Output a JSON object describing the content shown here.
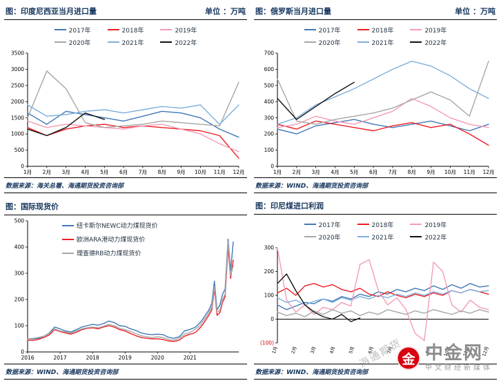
{
  "watermark": {
    "logo_text": "金",
    "brand": "中金网",
    "tagline": "中文财经新媒体",
    "diagonal": "海通期货"
  },
  "chart_data": [
    {
      "type": "line",
      "title": "图：印度尼西亚当月进口量",
      "unit": "单位 ：万吨",
      "source": "数据来源：海关总署、海通期货投资咨询部",
      "x_labels": [
        "1月",
        "2月",
        "3月",
        "4月",
        "5月",
        "6月",
        "7月",
        "8月",
        "9月",
        "10月",
        "11月",
        "12月"
      ],
      "ylim": [
        0,
        3500
      ],
      "yticks": [
        0,
        500,
        1000,
        1500,
        2000,
        2500,
        3000,
        3500
      ],
      "legend_position": "top",
      "grid": false,
      "series": [
        {
          "name": "2017年",
          "color": "#4177B4",
          "values": [
            1650,
            1300,
            1700,
            1600,
            1500,
            1400,
            1550,
            1700,
            1650,
            1500,
            1150,
            900
          ]
        },
        {
          "name": "2018年",
          "color": "#EC1C24",
          "values": [
            1200,
            950,
            1150,
            1250,
            1300,
            1200,
            1250,
            1200,
            1150,
            1100,
            950,
            250
          ]
        },
        {
          "name": "2019年",
          "color": "#F49BB6",
          "values": [
            1400,
            1200,
            1300,
            1250,
            1200,
            1150,
            1250,
            1300,
            1150,
            1000,
            700,
            450
          ]
        },
        {
          "name": "2020年",
          "color": "#A6A6A6",
          "values": [
            1500,
            2950,
            2400,
            1350,
            1200,
            1250,
            1300,
            1400,
            1350,
            1300,
            1250,
            2600
          ]
        },
        {
          "name": "2021年",
          "color": "#7EAFDC",
          "values": [
            1900,
            1550,
            1600,
            1700,
            1750,
            1650,
            1750,
            1850,
            1800,
            1900,
            1300,
            1900
          ]
        },
        {
          "name": "2022年",
          "color": "#111111",
          "values": [
            1150,
            950,
            1200,
            1650,
            1450,
            null,
            null,
            null,
            null,
            null,
            null,
            null
          ]
        }
      ]
    },
    {
      "type": "line",
      "title": "图：俄罗斯当月进口量",
      "unit": "单位 ：万吨",
      "source": "数据来源：WIND、海通期货投资咨询部",
      "x_labels": [
        "1月",
        "2月",
        "3月",
        "4月",
        "5月",
        "6月",
        "7月",
        "8月",
        "9月",
        "10月",
        "11月",
        "12月"
      ],
      "ylim": [
        0,
        700
      ],
      "yticks": [
        0,
        100,
        200,
        300,
        400,
        500,
        600,
        700
      ],
      "legend_position": "top",
      "grid": false,
      "series": [
        {
          "name": "2017年",
          "color": "#4177B4",
          "values": [
            230,
            200,
            250,
            270,
            290,
            260,
            240,
            260,
            280,
            250,
            220,
            260
          ]
        },
        {
          "name": "2018年",
          "color": "#EC1C24",
          "values": [
            260,
            230,
            280,
            260,
            240,
            220,
            250,
            270,
            240,
            260,
            200,
            130
          ]
        },
        {
          "name": "2019年",
          "color": "#F49BB6",
          "values": [
            240,
            260,
            310,
            280,
            260,
            300,
            340,
            420,
            370,
            300,
            260,
            240
          ]
        },
        {
          "name": "2020年",
          "color": "#A6A6A6",
          "values": [
            540,
            280,
            260,
            290,
            310,
            330,
            360,
            410,
            460,
            410,
            310,
            650
          ]
        },
        {
          "name": "2021年",
          "color": "#7EAFDC",
          "values": [
            260,
            300,
            380,
            430,
            480,
            540,
            600,
            650,
            620,
            560,
            480,
            420
          ]
        },
        {
          "name": "2022年",
          "color": "#111111",
          "values": [
            420,
            290,
            370,
            450,
            520,
            null,
            null,
            null,
            null,
            null,
            null,
            null
          ]
        }
      ]
    },
    {
      "type": "line",
      "title": "图：国际现货价",
      "source": "数据来源：WIND、海通期货投资咨询部",
      "x": [
        2016.0,
        2016.17,
        2016.33,
        2016.5,
        2016.67,
        2016.83,
        2017.0,
        2017.17,
        2017.33,
        2017.5,
        2017.67,
        2017.83,
        2018.0,
        2018.17,
        2018.33,
        2018.5,
        2018.67,
        2018.83,
        2019.0,
        2019.17,
        2019.33,
        2019.5,
        2019.67,
        2019.83,
        2020.0,
        2020.17,
        2020.33,
        2020.5,
        2020.67,
        2020.83,
        2021.0,
        2021.08,
        2021.17,
        2021.25,
        2021.33,
        2021.42,
        2021.5,
        2021.58,
        2021.67,
        2021.75,
        2021.83,
        2021.92,
        2022.0,
        2022.08,
        2022.17,
        2022.25,
        2022.33
      ],
      "x_range": [
        2016,
        2022.5
      ],
      "x_ticks": [
        2016,
        2017,
        2018,
        2019,
        2020,
        2021
      ],
      "x_labels": [
        "2016",
        "2017",
        "2018",
        "2019",
        "2020",
        "2021"
      ],
      "ylim": [
        0,
        500
      ],
      "yticks": [
        0,
        100,
        200,
        300,
        400,
        500
      ],
      "legend_position": "overlay",
      "grid": false,
      "series": [
        {
          "name": "纽卡斯尔NEWC动力煤现货价",
          "color": "#4177B4",
          "values": [
            50,
            50,
            52,
            60,
            72,
            95,
            88,
            80,
            76,
            85,
            95,
            100,
            105,
            102,
            108,
            118,
            112,
            100,
            98,
            88,
            82,
            72,
            68,
            66,
            68,
            66,
            56,
            52,
            58,
            80,
            86,
            90,
            95,
            105,
            115,
            130,
            145,
            160,
            185,
            270,
            160,
            180,
            220,
            240,
            430,
            310,
            420
          ]
        },
        {
          "name": "欧洲ARA港动力煤现货价",
          "color": "#EC1C24",
          "values": [
            45,
            44,
            48,
            55,
            65,
            85,
            78,
            72,
            68,
            75,
            85,
            90,
            92,
            88,
            95,
            100,
            95,
            85,
            80,
            70,
            62,
            55,
            52,
            50,
            50,
            48,
            42,
            40,
            45,
            60,
            68,
            70,
            75,
            85,
            95,
            110,
            125,
            140,
            160,
            240,
            140,
            150,
            190,
            210,
            400,
            280,
            350
          ]
        },
        {
          "name": "理查德RB动力煤现货价",
          "color": "#A6A6A6",
          "values": [
            50,
            52,
            55,
            60,
            70,
            88,
            80,
            76,
            72,
            80,
            88,
            92,
            95,
            92,
            98,
            105,
            100,
            90,
            85,
            78,
            70,
            62,
            58,
            55,
            58,
            55,
            48,
            45,
            52,
            68,
            75,
            80,
            88,
            95,
            105,
            120,
            135,
            150,
            170,
            250,
            150,
            160,
            200,
            220,
            420,
            290,
            330
          ]
        }
      ]
    },
    {
      "type": "line",
      "title": "图：印尼煤进口利润",
      "source": "数据来源：WIND、海通期货投资咨询部",
      "x_labels": [
        "1月",
        "2月",
        "3月",
        "4月",
        "5月",
        "6月",
        "7月",
        "8月",
        "9月",
        "10月",
        "11月",
        "12月"
      ],
      "rotate_labels": true,
      "neg_paren": true,
      "ylim": [
        -100,
        300
      ],
      "yticks": [
        -100,
        0,
        100,
        200,
        300
      ],
      "legend_position": "top",
      "grid": false,
      "series": [
        {
          "name": "2017年",
          "color": "#4177B4",
          "values": [
            60,
            40,
            55,
            70,
            65,
            85,
            75,
            95,
            85,
            105,
            95,
            115,
            105,
            125,
            115,
            130,
            120,
            140,
            125,
            145,
            130,
            150,
            135,
            140
          ]
        },
        {
          "name": "2018年",
          "color": "#EC1C24",
          "values": [
            110,
            130,
            100,
            140,
            150,
            135,
            145,
            125,
            115,
            130,
            105,
            95,
            115,
            100,
            90,
            105,
            95,
            110,
            100,
            120,
            110,
            125,
            115,
            105
          ]
        },
        {
          "name": "2019年",
          "color": "#F49BB6",
          "values": [
            300,
            80,
            30,
            60,
            20,
            50,
            40,
            70,
            55,
            230,
            250,
            120,
            60,
            90,
            40,
            -60,
            -90,
            240,
            200,
            60,
            30,
            80,
            50,
            40
          ]
        },
        {
          "name": "2020年",
          "color": "#A6A6A6",
          "values": [
            30,
            15,
            25,
            10,
            35,
            20,
            40,
            25,
            35,
            15,
            30,
            20,
            40,
            30,
            20,
            35,
            25,
            40,
            30,
            20,
            35,
            25,
            40,
            30
          ]
        },
        {
          "name": "2021年",
          "color": "#7EAFDC",
          "values": [
            90,
            70,
            80,
            60,
            75,
            85,
            70,
            90,
            80,
            95,
            85,
            100,
            90,
            105,
            95,
            110,
            100,
            115,
            105,
            120,
            110,
            125,
            115,
            120
          ]
        },
        {
          "name": "2022年",
          "color": "#111111",
          "values": [
            150,
            190,
            120,
            60,
            30,
            10,
            0,
            20,
            -10,
            5,
            null,
            null,
            null,
            null,
            null,
            null,
            null,
            null,
            null,
            null,
            null,
            null,
            null,
            null
          ]
        }
      ]
    }
  ]
}
